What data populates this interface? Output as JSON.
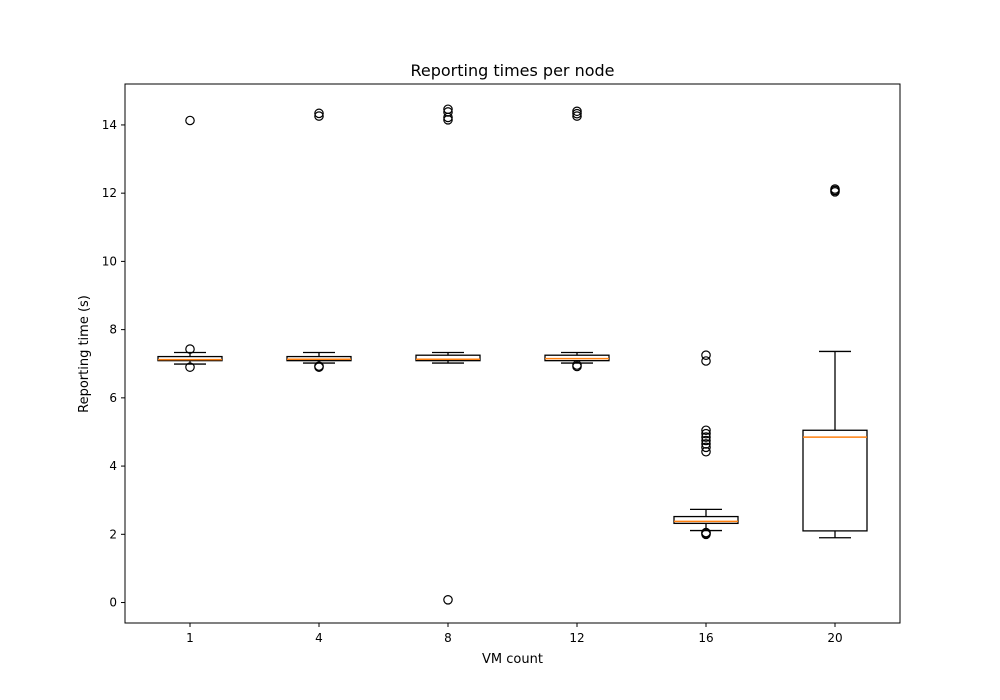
{
  "chart_data": {
    "type": "box",
    "title": "Reporting times per node",
    "xlabel": "VM count",
    "ylabel": "Reporting time (s)",
    "ylim": [
      -0.6,
      15.2
    ],
    "yticks": [
      0,
      2,
      4,
      6,
      8,
      10,
      12,
      14
    ],
    "grid": false,
    "categories": [
      "1",
      "4",
      "8",
      "12",
      "16",
      "20"
    ],
    "boxes": [
      {
        "category": "1",
        "whisker_low": 6.99,
        "q1": 7.09,
        "median": 7.12,
        "q3": 7.21,
        "whisker_high": 7.33,
        "outliers": [
          6.9,
          7.43,
          14.13
        ]
      },
      {
        "category": "4",
        "whisker_low": 7.02,
        "q1": 7.09,
        "median": 7.13,
        "q3": 7.21,
        "whisker_high": 7.33,
        "outliers": [
          6.9,
          6.93,
          14.26,
          14.34
        ]
      },
      {
        "category": "8",
        "whisker_low": 7.02,
        "q1": 7.09,
        "median": 7.13,
        "q3": 7.25,
        "whisker_high": 7.33,
        "outliers": [
          0.08,
          14.15,
          14.22,
          14.38,
          14.46
        ]
      },
      {
        "category": "12",
        "whisker_low": 7.02,
        "q1": 7.09,
        "median": 7.15,
        "q3": 7.25,
        "whisker_high": 7.33,
        "outliers": [
          6.92,
          6.96,
          14.26,
          14.33,
          14.4
        ]
      },
      {
        "category": "16",
        "whisker_low": 2.11,
        "q1": 2.32,
        "median": 2.38,
        "q3": 2.52,
        "whisker_high": 2.73,
        "outliers": [
          2.0,
          2.03,
          2.05,
          4.42,
          4.55,
          4.65,
          4.75,
          4.85,
          4.95,
          5.05,
          7.08,
          7.25
        ]
      },
      {
        "category": "20",
        "whisker_low": 1.9,
        "q1": 2.1,
        "median": 4.85,
        "q3": 5.05,
        "whisker_high": 7.36,
        "outliers": [
          12.04,
          12.08,
          12.12
        ]
      }
    ],
    "colors": {
      "box": "#000000",
      "median": "#ff7f0e",
      "outlier": "#000000"
    }
  }
}
